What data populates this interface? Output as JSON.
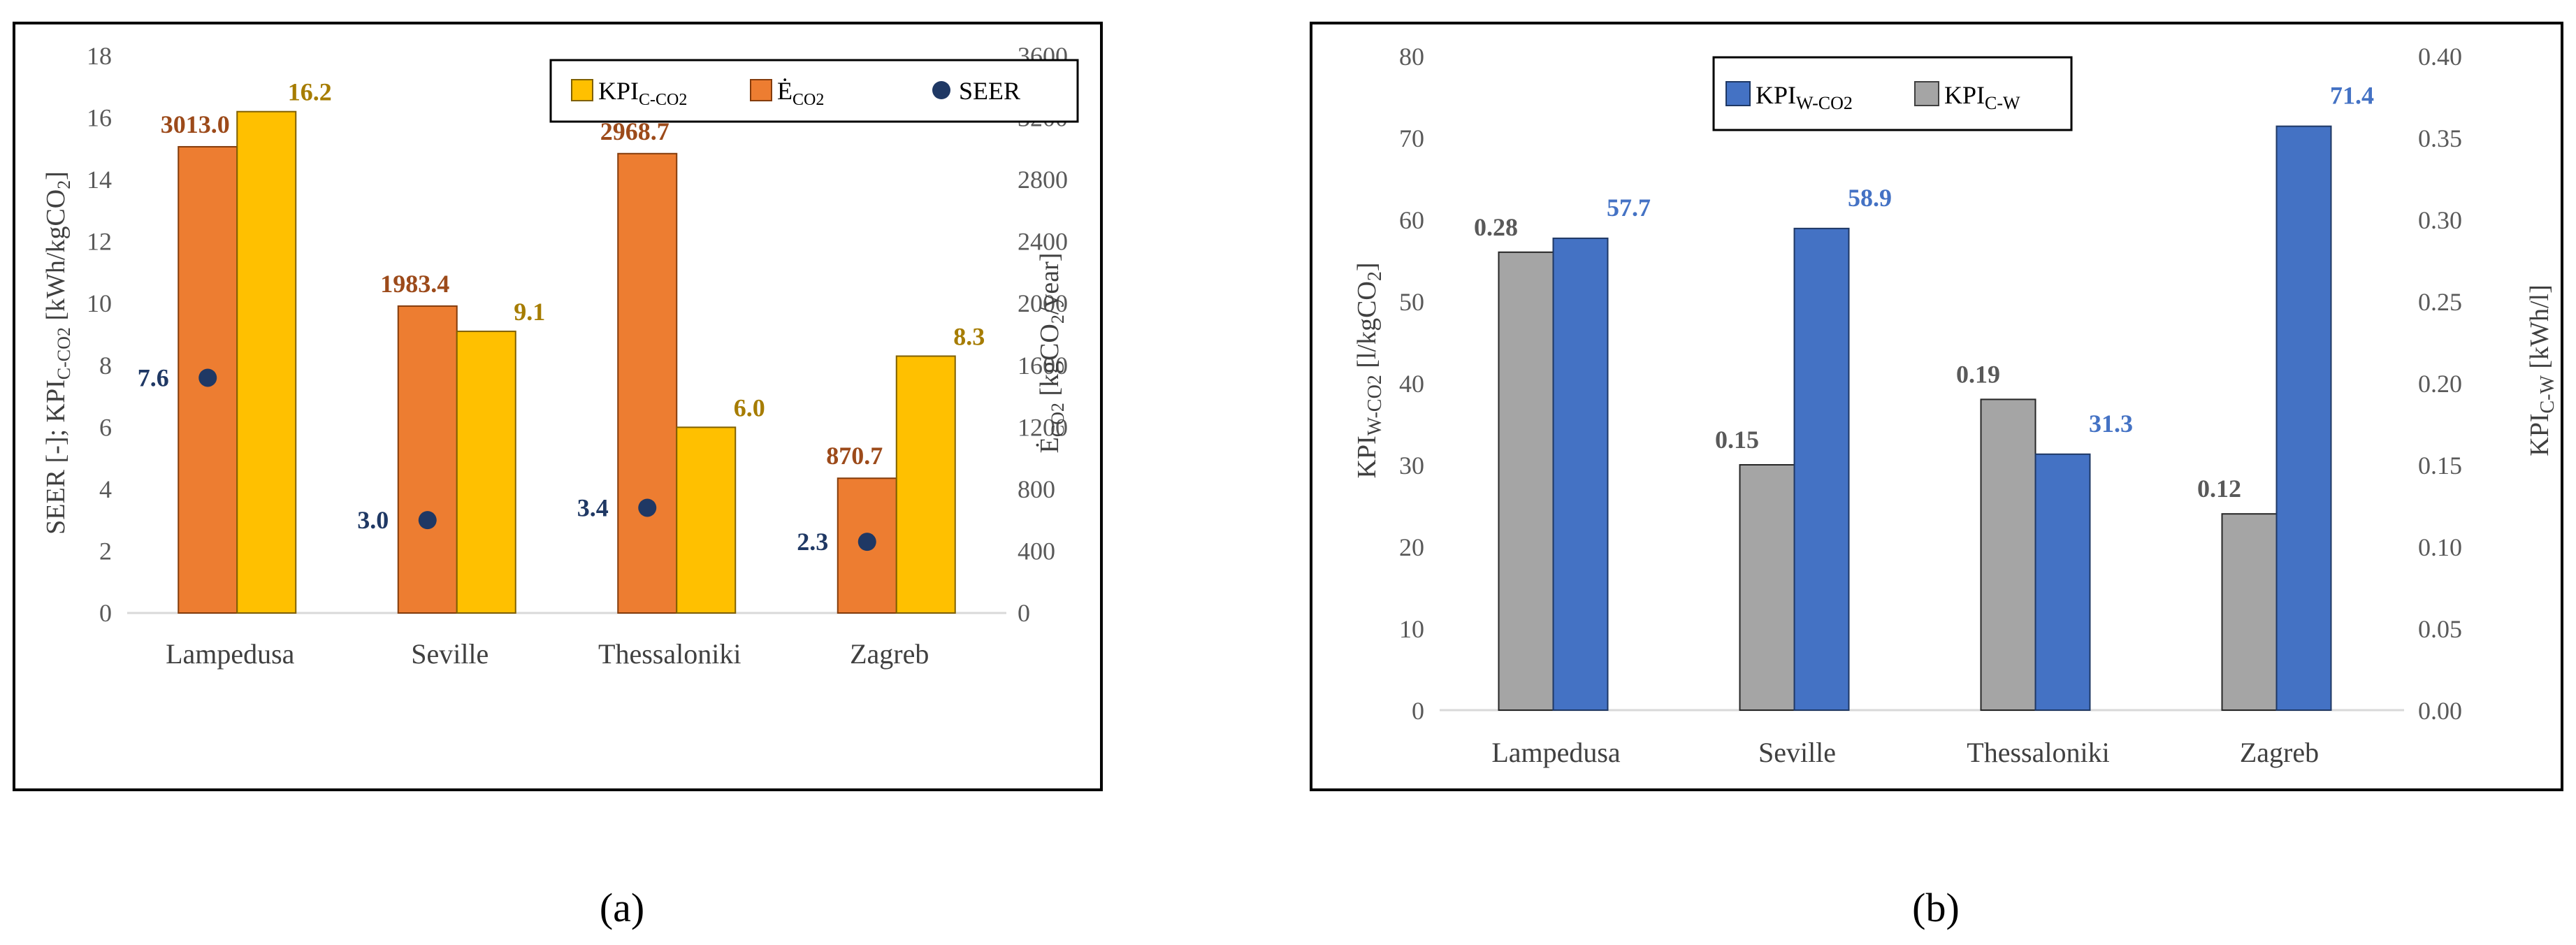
{
  "colors": {
    "orange": "#ED7D31",
    "orange_dark": "#843C0C",
    "orange_label": "#9C4A1A",
    "gold": "#FFC000",
    "gold_dark": "#7F6000",
    "gold_label": "#A67C00",
    "navy": "#1F3864",
    "navy_label": "#1F3864",
    "blue": "#4472C4",
    "blue_dark": "#1F3864",
    "blue_label": "#4472C4",
    "gray": "#A5A5A5",
    "gray_label": "#595959"
  },
  "chart_data": [
    {
      "type": "bar",
      "panel_label": "(a)",
      "categories": [
        "Lampedusa",
        "Seville",
        "Thessaloniki",
        "Zagreb"
      ],
      "ylim": [
        0,
        18
      ],
      "yticks": [
        "0",
        "2",
        "4",
        "6",
        "8",
        "10",
        "12",
        "14",
        "16",
        "18"
      ],
      "ytick_values": [
        0,
        2,
        4,
        6,
        8,
        10,
        12,
        14,
        16,
        18
      ],
      "y2lim": [
        0,
        3600
      ],
      "y2ticks": [
        "0",
        "400",
        "800",
        "1200",
        "1600",
        "2000",
        "2400",
        "2800",
        "3200",
        "3600"
      ],
      "y2tick_values": [
        0,
        400,
        800,
        1200,
        1600,
        2000,
        2400,
        2800,
        3200,
        3600
      ],
      "ylabel": "SEER [-]; KPIC-CO2 [kWh/kgCO2]",
      "ylabel_parts": {
        "a": "SEER [-]; KPI",
        "a_sub": "C-CO2",
        "b": " [kWh/kgCO",
        "b_sub": "2",
        "c": "]"
      },
      "y2label_parts": {
        "a": "Ė",
        "a_sub": "CO2",
        "b": " [kgCO",
        "b_sub": "2",
        "c": "/year]"
      },
      "legend": [
        {
          "main": "KPI",
          "sub": "C-CO2",
          "marker": "bar-gold"
        },
        {
          "main": "Ė",
          "sub": "CO2",
          "marker": "bar-orange"
        },
        {
          "main": "SEER",
          "sub": "",
          "marker": "dot-navy"
        }
      ],
      "series": [
        {
          "name": "ĖCO2",
          "axis": "y2",
          "values": [
            3013.0,
            1983.4,
            2968.7,
            870.7
          ],
          "labels": [
            "3013.0",
            "1983.4",
            "2968.7",
            "870.7"
          ]
        },
        {
          "name": "KPIC-CO2",
          "axis": "y",
          "values": [
            16.2,
            9.1,
            6.0,
            8.3
          ],
          "labels": [
            "16.2",
            "9.1",
            "6.0",
            "8.3"
          ]
        },
        {
          "name": "SEER",
          "axis": "y",
          "values": [
            7.6,
            3.0,
            3.4,
            2.3
          ],
          "labels": [
            "7.6",
            "3.0",
            "3.4",
            "2.3"
          ]
        }
      ]
    },
    {
      "type": "bar",
      "panel_label": "(b)",
      "categories": [
        "Lampedusa",
        "Seville",
        "Thessaloniki",
        "Zagreb"
      ],
      "ylim": [
        0,
        80
      ],
      "yticks": [
        "0",
        "10",
        "20",
        "30",
        "40",
        "50",
        "60",
        "70",
        "80"
      ],
      "ytick_values": [
        0,
        10,
        20,
        30,
        40,
        50,
        60,
        70,
        80
      ],
      "y2lim": [
        0,
        0.4
      ],
      "y2ticks": [
        "0.00",
        "0.05",
        "0.10",
        "0.15",
        "0.20",
        "0.25",
        "0.30",
        "0.35",
        "0.40"
      ],
      "y2tick_values": [
        0,
        0.05,
        0.1,
        0.15,
        0.2,
        0.25,
        0.3,
        0.35,
        0.4
      ],
      "ylabel_parts": {
        "a": "KPI",
        "a_sub": "W-CO2",
        "b": " [l/kgCO",
        "b_sub": "2",
        "c": "]"
      },
      "y2label_parts": {
        "a": "KPI",
        "a_sub": "C-W",
        "b": " [kWh/l]",
        "b_sub": "",
        "c": ""
      },
      "legend": [
        {
          "main": "KPI",
          "sub": "W-CO2",
          "marker": "bar-blue"
        },
        {
          "main": "KPI",
          "sub": "C-W",
          "marker": "bar-gray"
        }
      ],
      "series": [
        {
          "name": "KPIC-W",
          "axis": "y2",
          "values": [
            0.28,
            0.15,
            0.19,
            0.12
          ],
          "labels": [
            "0.28",
            "0.15",
            "0.19",
            "0.12"
          ]
        },
        {
          "name": "KPIW-CO2",
          "axis": "y",
          "values": [
            57.7,
            58.9,
            31.3,
            71.4
          ],
          "labels": [
            "57.7",
            "58.9",
            "31.3",
            "71.4"
          ]
        }
      ]
    }
  ]
}
